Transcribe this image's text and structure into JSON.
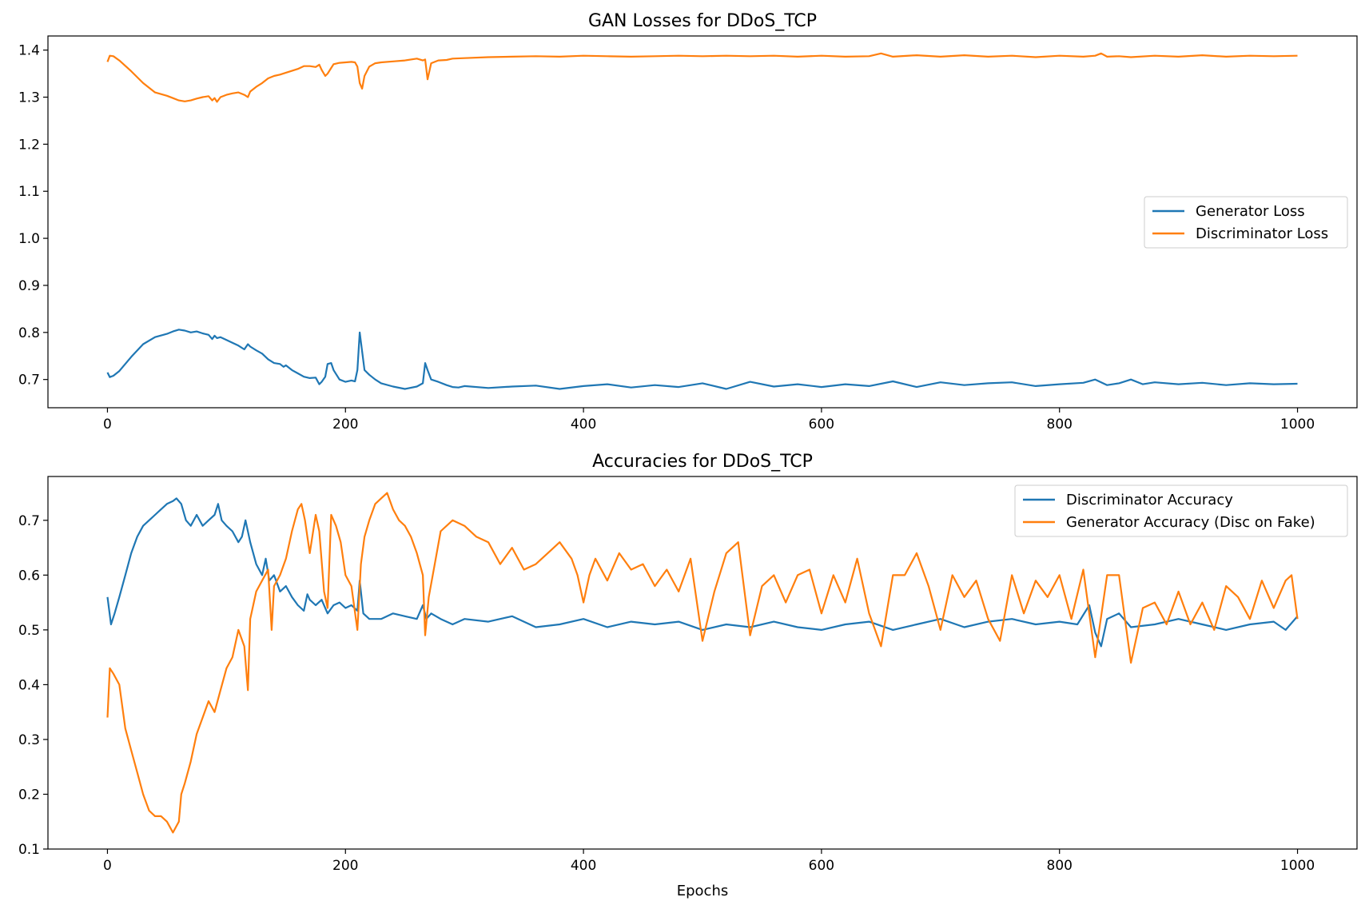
{
  "colors": {
    "generator_loss": "#1f77b4",
    "discriminator_loss": "#ff7f0e",
    "discriminator_accuracy": "#1f77b4",
    "generator_accuracy": "#ff7f0e"
  },
  "chart_data": [
    {
      "type": "line",
      "title": "GAN Losses for DDoS_TCP",
      "xlabel": "",
      "ylabel": "",
      "xlim": [
        -50,
        1050
      ],
      "ylim": [
        0.64,
        1.43
      ],
      "xticks": [
        0,
        200,
        400,
        600,
        800,
        1000
      ],
      "yticks": [
        0.7,
        0.8,
        0.9,
        1.0,
        1.1,
        1.2,
        1.3,
        1.4
      ],
      "grid": false,
      "legend_position": "center-right",
      "series": [
        {
          "name": "Generator Loss",
          "color": "#1f77b4",
          "x": [
            0,
            2,
            5,
            10,
            20,
            30,
            40,
            50,
            55,
            60,
            65,
            70,
            75,
            80,
            85,
            88,
            90,
            92,
            95,
            100,
            105,
            110,
            115,
            118,
            120,
            125,
            130,
            135,
            140,
            145,
            148,
            150,
            155,
            160,
            165,
            170,
            175,
            178,
            180,
            183,
            185,
            188,
            190,
            195,
            200,
            205,
            208,
            210,
            212,
            214,
            216,
            220,
            225,
            230,
            240,
            250,
            260,
            265,
            267,
            269,
            272,
            278,
            285,
            290,
            295,
            300,
            320,
            340,
            360,
            380,
            400,
            420,
            440,
            460,
            480,
            500,
            520,
            540,
            560,
            580,
            600,
            620,
            640,
            660,
            680,
            700,
            720,
            740,
            760,
            780,
            800,
            820,
            830,
            840,
            850,
            860,
            870,
            880,
            900,
            920,
            940,
            960,
            980,
            1000
          ],
          "y": [
            0.715,
            0.705,
            0.708,
            0.718,
            0.748,
            0.775,
            0.79,
            0.797,
            0.802,
            0.806,
            0.804,
            0.8,
            0.802,
            0.798,
            0.795,
            0.786,
            0.793,
            0.788,
            0.79,
            0.784,
            0.778,
            0.772,
            0.764,
            0.775,
            0.77,
            0.762,
            0.755,
            0.743,
            0.735,
            0.733,
            0.727,
            0.73,
            0.72,
            0.713,
            0.706,
            0.703,
            0.704,
            0.69,
            0.695,
            0.706,
            0.733,
            0.735,
            0.72,
            0.7,
            0.695,
            0.698,
            0.696,
            0.72,
            0.8,
            0.76,
            0.72,
            0.71,
            0.7,
            0.692,
            0.685,
            0.68,
            0.685,
            0.692,
            0.735,
            0.72,
            0.7,
            0.695,
            0.688,
            0.684,
            0.683,
            0.686,
            0.682,
            0.685,
            0.687,
            0.68,
            0.686,
            0.69,
            0.683,
            0.688,
            0.684,
            0.692,
            0.68,
            0.695,
            0.685,
            0.69,
            0.684,
            0.69,
            0.686,
            0.696,
            0.684,
            0.694,
            0.688,
            0.692,
            0.694,
            0.686,
            0.69,
            0.693,
            0.7,
            0.688,
            0.692,
            0.7,
            0.69,
            0.694,
            0.69,
            0.693,
            0.688,
            0.692,
            0.69,
            0.691
          ]
        },
        {
          "name": "Discriminator Loss",
          "color": "#ff7f0e",
          "x": [
            0,
            2,
            5,
            10,
            20,
            30,
            40,
            50,
            55,
            60,
            65,
            70,
            75,
            80,
            85,
            88,
            90,
            92,
            95,
            100,
            105,
            110,
            115,
            118,
            120,
            125,
            130,
            135,
            140,
            145,
            150,
            155,
            160,
            165,
            170,
            175,
            178,
            180,
            183,
            185,
            188,
            190,
            195,
            200,
            205,
            208,
            210,
            212,
            214,
            216,
            220,
            225,
            230,
            240,
            250,
            260,
            265,
            267,
            269,
            272,
            278,
            285,
            290,
            300,
            320,
            340,
            360,
            380,
            400,
            420,
            440,
            460,
            480,
            500,
            520,
            540,
            560,
            580,
            600,
            620,
            640,
            650,
            660,
            680,
            700,
            720,
            740,
            760,
            780,
            800,
            820,
            830,
            835,
            840,
            850,
            860,
            880,
            900,
            920,
            940,
            960,
            980,
            1000
          ],
          "y": [
            1.375,
            1.388,
            1.387,
            1.378,
            1.355,
            1.33,
            1.31,
            1.303,
            1.298,
            1.293,
            1.291,
            1.293,
            1.297,
            1.3,
            1.302,
            1.293,
            1.298,
            1.29,
            1.3,
            1.305,
            1.308,
            1.31,
            1.305,
            1.3,
            1.312,
            1.322,
            1.33,
            1.34,
            1.345,
            1.348,
            1.352,
            1.356,
            1.36,
            1.366,
            1.366,
            1.364,
            1.369,
            1.358,
            1.345,
            1.35,
            1.362,
            1.37,
            1.373,
            1.374,
            1.375,
            1.374,
            1.365,
            1.33,
            1.318,
            1.345,
            1.365,
            1.372,
            1.374,
            1.376,
            1.378,
            1.382,
            1.378,
            1.38,
            1.338,
            1.372,
            1.378,
            1.379,
            1.382,
            1.383,
            1.385,
            1.386,
            1.387,
            1.386,
            1.388,
            1.387,
            1.386,
            1.387,
            1.388,
            1.387,
            1.388,
            1.387,
            1.388,
            1.386,
            1.388,
            1.386,
            1.387,
            1.393,
            1.386,
            1.389,
            1.386,
            1.389,
            1.386,
            1.388,
            1.385,
            1.388,
            1.386,
            1.388,
            1.393,
            1.386,
            1.387,
            1.385,
            1.388,
            1.386,
            1.389,
            1.386,
            1.388,
            1.387,
            1.388
          ]
        }
      ]
    },
    {
      "type": "line",
      "title": "Accuracies for DDoS_TCP",
      "xlabel": "Epochs",
      "ylabel": "",
      "xlim": [
        -50,
        1050
      ],
      "ylim": [
        0.1,
        0.78
      ],
      "xticks": [
        0,
        200,
        400,
        600,
        800,
        1000
      ],
      "yticks": [
        0.1,
        0.2,
        0.3,
        0.4,
        0.5,
        0.6,
        0.7
      ],
      "grid": false,
      "legend_position": "top-right",
      "series": [
        {
          "name": "Discriminator Accuracy",
          "color": "#1f77b4",
          "x": [
            0,
            3,
            6,
            10,
            15,
            20,
            25,
            30,
            35,
            40,
            45,
            50,
            55,
            58,
            62,
            66,
            70,
            75,
            80,
            85,
            90,
            93,
            96,
            100,
            105,
            110,
            113,
            116,
            120,
            125,
            130,
            133,
            136,
            140,
            145,
            150,
            155,
            160,
            165,
            168,
            170,
            175,
            180,
            185,
            190,
            195,
            200,
            205,
            210,
            212,
            215,
            220,
            230,
            240,
            250,
            260,
            265,
            268,
            272,
            280,
            290,
            300,
            320,
            340,
            360,
            380,
            400,
            420,
            440,
            460,
            480,
            500,
            520,
            540,
            560,
            580,
            600,
            620,
            640,
            660,
            680,
            700,
            720,
            740,
            760,
            780,
            800,
            815,
            825,
            830,
            835,
            840,
            850,
            860,
            880,
            900,
            920,
            940,
            960,
            980,
            990,
            1000
          ],
          "y": [
            0.56,
            0.51,
            0.53,
            0.56,
            0.6,
            0.64,
            0.67,
            0.69,
            0.7,
            0.71,
            0.72,
            0.73,
            0.735,
            0.74,
            0.73,
            0.7,
            0.69,
            0.71,
            0.69,
            0.7,
            0.71,
            0.73,
            0.7,
            0.69,
            0.68,
            0.66,
            0.67,
            0.7,
            0.66,
            0.62,
            0.6,
            0.63,
            0.59,
            0.6,
            0.57,
            0.58,
            0.56,
            0.545,
            0.535,
            0.565,
            0.555,
            0.545,
            0.555,
            0.53,
            0.545,
            0.55,
            0.54,
            0.545,
            0.535,
            0.59,
            0.53,
            0.52,
            0.52,
            0.53,
            0.525,
            0.52,
            0.545,
            0.52,
            0.53,
            0.52,
            0.51,
            0.52,
            0.515,
            0.525,
            0.505,
            0.51,
            0.52,
            0.505,
            0.515,
            0.51,
            0.515,
            0.5,
            0.51,
            0.505,
            0.515,
            0.505,
            0.5,
            0.51,
            0.515,
            0.5,
            0.51,
            0.52,
            0.505,
            0.515,
            0.52,
            0.51,
            0.515,
            0.51,
            0.545,
            0.495,
            0.47,
            0.52,
            0.53,
            0.505,
            0.51,
            0.52,
            0.51,
            0.5,
            0.51,
            0.515,
            0.5,
            0.525
          ]
        },
        {
          "name": "Generator Accuracy (Disc on Fake)",
          "color": "#ff7f0e",
          "x": [
            0,
            2,
            5,
            10,
            15,
            20,
            25,
            30,
            35,
            40,
            45,
            50,
            55,
            60,
            62,
            65,
            70,
            75,
            80,
            85,
            90,
            95,
            100,
            105,
            110,
            115,
            118,
            120,
            125,
            130,
            135,
            138,
            140,
            145,
            150,
            155,
            160,
            163,
            166,
            170,
            175,
            178,
            182,
            185,
            188,
            192,
            196,
            200,
            205,
            210,
            213,
            216,
            220,
            225,
            230,
            235,
            240,
            245,
            250,
            255,
            260,
            265,
            267,
            270,
            275,
            280,
            290,
            300,
            310,
            320,
            330,
            340,
            350,
            360,
            370,
            380,
            390,
            395,
            400,
            405,
            410,
            420,
            430,
            440,
            450,
            460,
            470,
            480,
            490,
            500,
            510,
            520,
            530,
            540,
            550,
            560,
            570,
            580,
            590,
            600,
            610,
            620,
            630,
            640,
            650,
            660,
            670,
            680,
            690,
            700,
            710,
            720,
            730,
            740,
            750,
            760,
            770,
            780,
            790,
            800,
            810,
            820,
            830,
            840,
            850,
            860,
            870,
            880,
            890,
            900,
            910,
            920,
            930,
            940,
            950,
            960,
            970,
            980,
            990,
            995,
            1000
          ],
          "y": [
            0.34,
            0.43,
            0.42,
            0.4,
            0.32,
            0.28,
            0.24,
            0.2,
            0.17,
            0.16,
            0.16,
            0.15,
            0.13,
            0.15,
            0.2,
            0.22,
            0.26,
            0.31,
            0.34,
            0.37,
            0.35,
            0.39,
            0.43,
            0.45,
            0.5,
            0.47,
            0.39,
            0.52,
            0.57,
            0.59,
            0.61,
            0.5,
            0.58,
            0.6,
            0.63,
            0.68,
            0.72,
            0.73,
            0.7,
            0.64,
            0.71,
            0.68,
            0.57,
            0.54,
            0.71,
            0.69,
            0.66,
            0.6,
            0.58,
            0.5,
            0.62,
            0.67,
            0.7,
            0.73,
            0.74,
            0.75,
            0.72,
            0.7,
            0.69,
            0.67,
            0.64,
            0.6,
            0.49,
            0.56,
            0.62,
            0.68,
            0.7,
            0.69,
            0.67,
            0.66,
            0.62,
            0.65,
            0.61,
            0.62,
            0.64,
            0.66,
            0.63,
            0.6,
            0.55,
            0.6,
            0.63,
            0.59,
            0.64,
            0.61,
            0.62,
            0.58,
            0.61,
            0.57,
            0.63,
            0.48,
            0.57,
            0.64,
            0.66,
            0.49,
            0.58,
            0.6,
            0.55,
            0.6,
            0.61,
            0.53,
            0.6,
            0.55,
            0.63,
            0.53,
            0.47,
            0.6,
            0.6,
            0.64,
            0.58,
            0.5,
            0.6,
            0.56,
            0.59,
            0.52,
            0.48,
            0.6,
            0.53,
            0.59,
            0.56,
            0.6,
            0.52,
            0.61,
            0.45,
            0.6,
            0.6,
            0.44,
            0.54,
            0.55,
            0.51,
            0.57,
            0.51,
            0.55,
            0.5,
            0.58,
            0.56,
            0.52,
            0.59,
            0.54,
            0.59,
            0.6,
            0.52
          ]
        }
      ]
    }
  ]
}
